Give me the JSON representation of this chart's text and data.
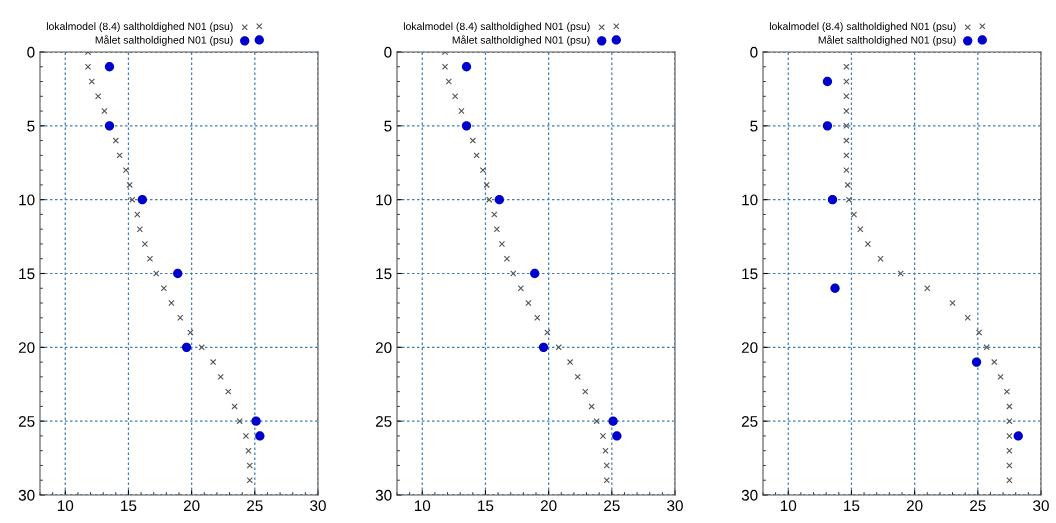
{
  "chart_data": [
    {
      "type": "scatter",
      "xlim": [
        8,
        30
      ],
      "xticks": [
        10,
        15,
        20,
        25,
        30
      ],
      "ylim": [
        30,
        0
      ],
      "yticks": [
        0,
        5,
        10,
        15,
        20,
        25,
        30
      ],
      "grid": true,
      "legend": "top left",
      "series": [
        {
          "name": "lokalmodel (8.4) saltholdighed N01 (psu)",
          "color": "#555555",
          "marker": "cross",
          "x": [
            11.8,
            11.8,
            12.1,
            12.6,
            13.1,
            13.5,
            14.0,
            14.3,
            14.8,
            15.1,
            15.3,
            15.7,
            15.9,
            16.3,
            16.7,
            17.2,
            17.8,
            18.4,
            19.1,
            19.9,
            20.8,
            21.7,
            22.3,
            22.9,
            23.4,
            23.8,
            24.3,
            24.5,
            24.6,
            24.6
          ],
          "values": [
            0,
            1,
            2,
            3,
            4,
            null,
            6,
            7,
            8,
            9,
            10,
            11,
            12,
            13,
            14,
            15,
            16,
            17,
            18,
            19,
            20,
            21,
            22,
            23,
            24,
            25,
            26,
            27,
            28,
            29
          ]
        },
        {
          "name": "Målet saltholdighed N01 (psu)",
          "color": "#0000cc",
          "marker": "circle",
          "x": [
            13.5,
            13.5,
            16.1,
            18.9,
            19.6,
            25.1,
            25.4
          ],
          "values": [
            1,
            5,
            10,
            15,
            20,
            25,
            26
          ]
        }
      ]
    },
    {
      "type": "scatter",
      "xlim": [
        8,
        30
      ],
      "xticks": [
        10,
        15,
        20,
        25,
        30
      ],
      "ylim": [
        30,
        0
      ],
      "yticks": [
        0,
        5,
        10,
        15,
        20,
        25,
        30
      ],
      "grid": true,
      "legend": "top left",
      "series": [
        {
          "name": "lokalmodel (8.4) saltholdighed N01 (psu)",
          "color": "#555555",
          "marker": "cross",
          "x": [
            11.8,
            11.8,
            12.1,
            12.6,
            13.1,
            13.5,
            14.0,
            14.3,
            14.8,
            15.1,
            15.3,
            15.7,
            15.9,
            16.3,
            16.7,
            17.2,
            17.8,
            18.4,
            19.1,
            19.9,
            20.8,
            21.7,
            22.3,
            22.9,
            23.4,
            23.8,
            24.3,
            24.5,
            24.6,
            24.6
          ],
          "values": [
            0,
            1,
            2,
            3,
            4,
            null,
            6,
            7,
            8,
            9,
            10,
            11,
            12,
            13,
            14,
            15,
            16,
            17,
            18,
            19,
            20,
            21,
            22,
            23,
            24,
            25,
            26,
            27,
            28,
            29
          ]
        },
        {
          "name": "Målet saltholdighed N01 (psu)",
          "color": "#0000cc",
          "marker": "circle",
          "x": [
            13.5,
            13.5,
            16.1,
            18.9,
            19.6,
            25.1,
            25.4
          ],
          "values": [
            1,
            5,
            10,
            15,
            20,
            25,
            26
          ]
        }
      ]
    },
    {
      "type": "scatter",
      "xlim": [
        8,
        30
      ],
      "xticks": [
        10,
        15,
        20,
        25,
        30
      ],
      "ylim": [
        30,
        0
      ],
      "yticks": [
        0,
        5,
        10,
        15,
        20,
        25,
        30
      ],
      "grid": true,
      "legend": "top left",
      "series": [
        {
          "name": "lokalmodel (8.4) saltholdighed N01 (psu)",
          "color": "#555555",
          "marker": "cross",
          "x": [
            14.6,
            14.6,
            14.6,
            14.6,
            14.6,
            14.6,
            14.6,
            14.6,
            14.7,
            14.8,
            15.2,
            15.7,
            16.3,
            17.3,
            18.9,
            21.0,
            23.0,
            24.2,
            25.1,
            25.7,
            26.3,
            26.8,
            27.3,
            27.5,
            27.5,
            27.5,
            27.5,
            27.5,
            27.5
          ],
          "values": [
            1,
            2,
            3,
            4,
            5,
            6,
            7,
            8,
            9,
            10,
            11,
            12,
            13,
            14,
            15,
            16,
            17,
            18,
            19,
            20,
            21,
            22,
            23,
            24,
            25,
            26,
            27,
            28,
            29
          ]
        },
        {
          "name": "Målet saltholdighed N01 (psu)",
          "color": "#0000cc",
          "marker": "circle",
          "x": [
            13.1,
            13.1,
            13.5,
            13.7,
            24.9,
            28.2
          ],
          "values": [
            2,
            5,
            10,
            16,
            21,
            26
          ]
        }
      ]
    }
  ]
}
